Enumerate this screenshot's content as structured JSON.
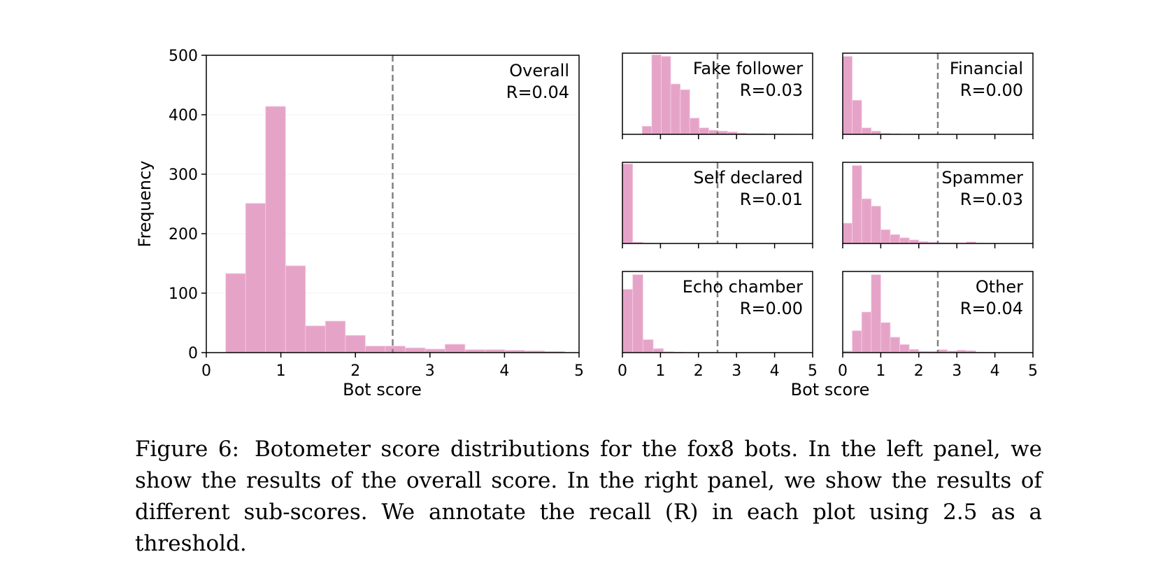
{
  "figure": {
    "caption_label": "Figure 6:",
    "caption_text": "Botometer score distributions for the fox8 bots. In the left panel, we show the results of the overall score. In the right panel, we show the results of different sub-scores. We annotate the recall (R) in each plot using 2.5 as a threshold."
  },
  "colors": {
    "bar": "#e6a3c8",
    "threshold": "#808080",
    "axis": "#000000"
  },
  "chart_data": [
    {
      "type": "bar",
      "title": "Overall",
      "annotation": "R=0.04",
      "xlabel": "Bot score",
      "ylabel": "Frequency",
      "xlim": [
        0,
        5
      ],
      "ylim": [
        0,
        500
      ],
      "xticks": [
        "0",
        "1",
        "2",
        "3",
        "4",
        "5"
      ],
      "yticks": [
        "0",
        "100",
        "200",
        "300",
        "400",
        "500"
      ],
      "bin_width": 0.2675,
      "bin_start": 0.26,
      "values": [
        133,
        251,
        414,
        146,
        45,
        53,
        29,
        11,
        11,
        8,
        6,
        14,
        5,
        5,
        4,
        3,
        2
      ],
      "threshold": 2.5
    },
    {
      "type": "bar",
      "title": "Fake follower",
      "annotation": "R=0.03",
      "xlim": [
        0,
        5
      ],
      "ymax": 500,
      "xticks": [
        "0",
        "1",
        "2",
        "3",
        "4",
        "5"
      ],
      "bin_width": 0.25,
      "bin_start": 0.52,
      "values": [
        50,
        490,
        480,
        310,
        275,
        100,
        40,
        25,
        20,
        15,
        8,
        5,
        5,
        3,
        3,
        2
      ],
      "threshold": 2.5
    },
    {
      "type": "bar",
      "title": "Financial",
      "annotation": "R=0.00",
      "xlim": [
        0,
        5
      ],
      "ymax": 500,
      "xticks": [
        "0",
        "1",
        "2",
        "3",
        "4",
        "5"
      ],
      "bin_width": 0.25,
      "bin_start": 0.0,
      "values": [
        480,
        210,
        40,
        20,
        6,
        3
      ],
      "threshold": 2.5
    },
    {
      "type": "bar",
      "title": "Self declared",
      "annotation": "R=0.01",
      "xlim": [
        0,
        5
      ],
      "ymax": 500,
      "xticks": [
        "0",
        "1",
        "2",
        "3",
        "4",
        "5"
      ],
      "bin_width": 0.27,
      "bin_start": 0.0,
      "values": [
        490,
        8,
        3,
        1
      ],
      "threshold": 2.5
    },
    {
      "type": "bar",
      "title": "Spammer",
      "annotation": "R=0.03",
      "xlim": [
        0,
        5
      ],
      "ymax": 500,
      "xticks": [
        "0",
        "1",
        "2",
        "3",
        "4",
        "5"
      ],
      "bin_width": 0.25,
      "bin_start": 0.0,
      "values": [
        125,
        480,
        275,
        230,
        85,
        55,
        35,
        22,
        12,
        8,
        5,
        5,
        4,
        10,
        3,
        2
      ],
      "threshold": 2.5
    },
    {
      "type": "bar",
      "title": "Echo chamber",
      "annotation": "R=0.00",
      "xlim": [
        0,
        5
      ],
      "ymax": 500,
      "xticks": [
        "0",
        "1",
        "2",
        "3",
        "4",
        "5"
      ],
      "bin_width": 0.27,
      "bin_start": 0.0,
      "values": [
        390,
        480,
        80,
        25,
        6,
        3
      ],
      "threshold": 2.5
    },
    {
      "type": "bar",
      "title": "Other",
      "annotation": "R=0.04",
      "xlim": [
        0,
        5
      ],
      "ymax": 500,
      "xticks": [
        "0",
        "1",
        "2",
        "3",
        "4",
        "5"
      ],
      "bin_width": 0.25,
      "bin_start": 0.0,
      "values": [
        10,
        135,
        250,
        480,
        185,
        95,
        50,
        20,
        8,
        8,
        18,
        10,
        15,
        12,
        3,
        2
      ],
      "threshold": 2.5
    }
  ],
  "right_panel_xlabel": "Bot score"
}
